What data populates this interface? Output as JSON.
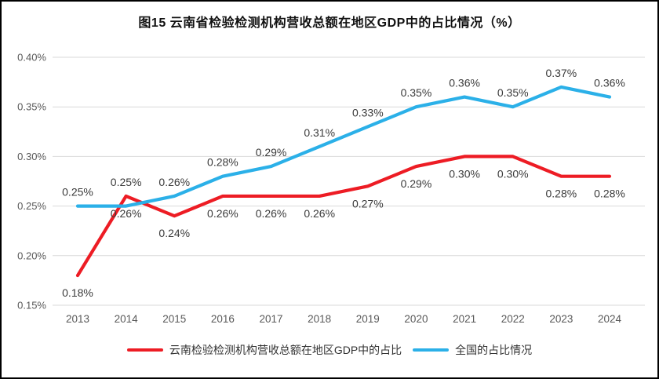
{
  "figure": {
    "title": "图15 云南省检验检测机构营收总额在地区GDP中的占比情况（%）"
  },
  "chart_data": {
    "type": "line",
    "x": [
      "2013",
      "2014",
      "2015",
      "2016",
      "2017",
      "2018",
      "2019",
      "2020",
      "2021",
      "2022",
      "2023",
      "2024"
    ],
    "series": [
      {
        "name": "云南检验检测机构营收总额在地区GDP中的占比",
        "color": "#ed1c24",
        "values": [
          0.18,
          0.26,
          0.24,
          0.26,
          0.26,
          0.26,
          0.27,
          0.29,
          0.3,
          0.3,
          0.28,
          0.28
        ],
        "labels": [
          "0.18%",
          "0.26%",
          "0.24%",
          "0.26%",
          "0.26%",
          "0.26%",
          "0.27%",
          "0.29%",
          "0.30%",
          "0.30%",
          "0.28%",
          "0.28%"
        ],
        "label_position": "below"
      },
      {
        "name": "全国的占比情况",
        "color": "#2bb0e8",
        "values": [
          0.25,
          0.25,
          0.26,
          0.28,
          0.29,
          0.31,
          0.33,
          0.35,
          0.36,
          0.35,
          0.37,
          0.36
        ],
        "labels": [
          "0.25%",
          "0.25%",
          "0.26%",
          "0.28%",
          "0.29%",
          "0.31%",
          "0.33%",
          "0.35%",
          "0.36%",
          "0.35%",
          "0.37%",
          "0.36%"
        ],
        "label_position": "above"
      }
    ],
    "ylim": [
      0.15,
      0.4
    ],
    "yticks": [
      "0.40%",
      "0.35%",
      "0.30%",
      "0.25%",
      "0.20%",
      "0.15%"
    ],
    "ytick_values": [
      0.4,
      0.35,
      0.3,
      0.25,
      0.2,
      0.15
    ],
    "grid": true,
    "legend_position": "bottom",
    "colors": {
      "grid": "#d9d9d9",
      "axis_text": "#595959",
      "data_label_text": "#3a3a3a",
      "title_text": "#111111",
      "frame_border": "#000000"
    }
  }
}
